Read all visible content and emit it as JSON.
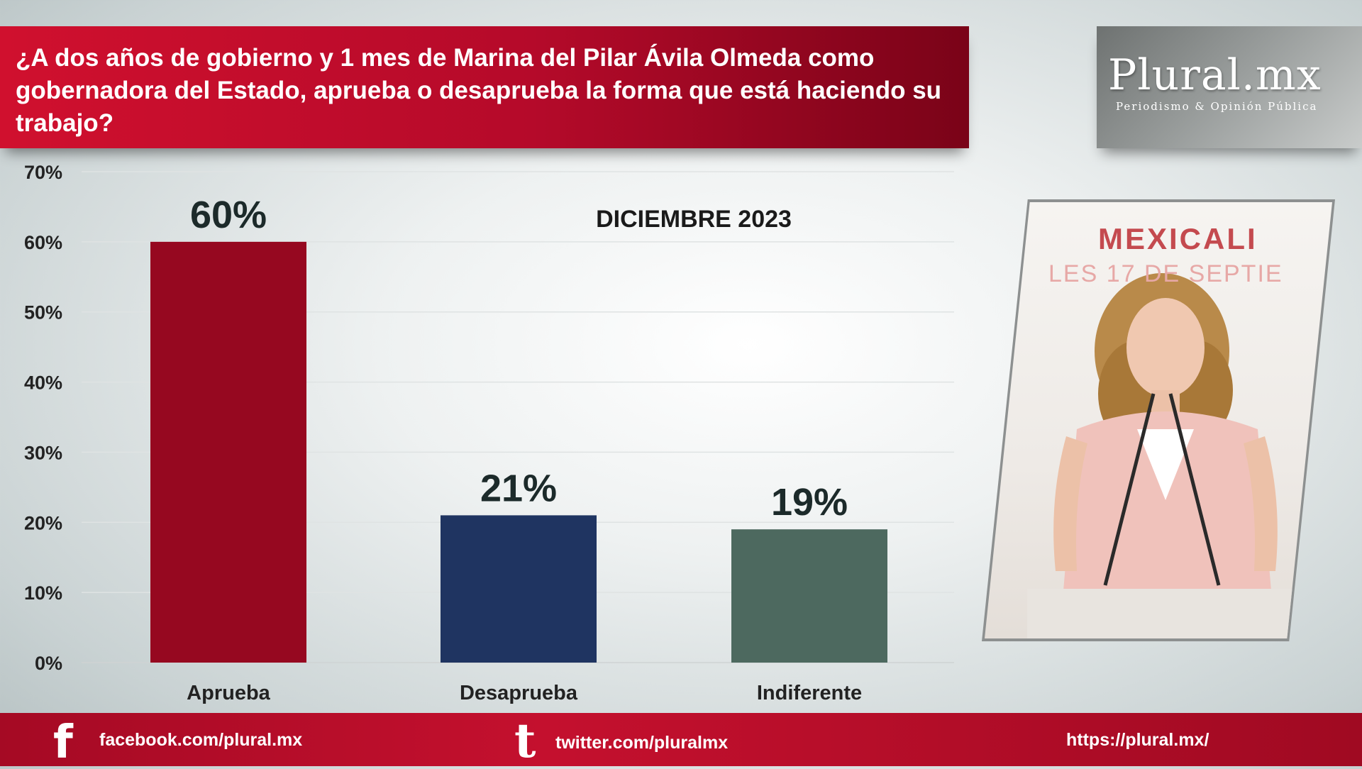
{
  "header": {
    "title": "¿A dos años de gobierno y 1 mes de Marina del Pilar Ávila Olmeda como gobernadora del Estado, aprueba o desaprueba la forma que está haciendo su trabajo?"
  },
  "logo": {
    "name": "Plural.mx",
    "tagline": "Periodismo & Opinión Pública"
  },
  "photo": {
    "sign_line1": "MEXICALI",
    "sign_line2": "LES 17 DE SEPTIE"
  },
  "chart_data": {
    "type": "bar",
    "subtitle": "DICIEMBRE 2023",
    "categories": [
      "Aprueba",
      "Desaprueba",
      "Indiferente"
    ],
    "values": [
      60,
      21,
      19
    ],
    "value_labels": [
      "60%",
      "21%",
      "19%"
    ],
    "colors": [
      "#960820",
      "#1f3461",
      "#4d695f"
    ],
    "yticks": [
      "0%",
      "10%",
      "20%",
      "30%",
      "40%",
      "50%",
      "60%",
      "70%"
    ],
    "ylim": [
      0,
      70
    ],
    "grid": true,
    "legend": "none"
  },
  "footer": {
    "facebook": "facebook.com/plural.mx",
    "twitter": "twitter.com/pluralmx",
    "website": "https://plural.mx/"
  },
  "colors": {
    "banner": "#c40f2d",
    "footer": "#b50c28"
  }
}
